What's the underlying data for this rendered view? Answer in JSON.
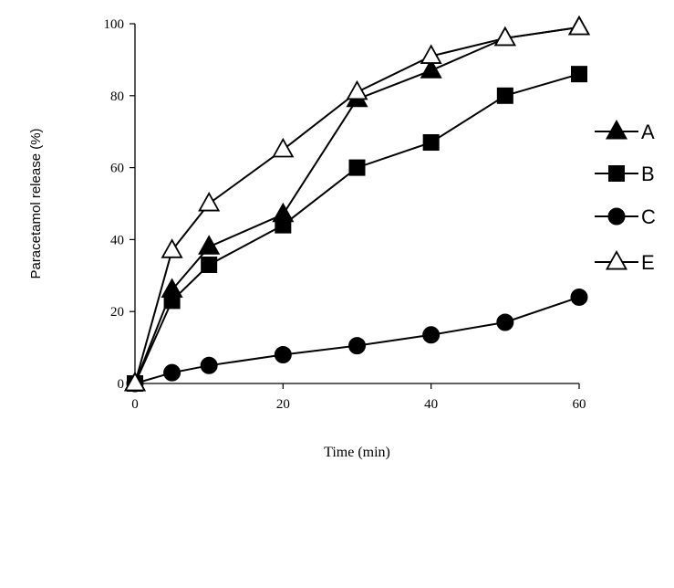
{
  "chart_data": {
    "type": "line",
    "title": "",
    "xlabel": "Time (min)",
    "ylabel": "Paracetamol release (%)",
    "xlim": [
      0,
      60
    ],
    "ylim": [
      0,
      100
    ],
    "x_ticks": [
      0,
      20,
      40,
      60
    ],
    "y_ticks": [
      0,
      20,
      40,
      60,
      80,
      100
    ],
    "grid": false,
    "legend_position": "right",
    "series": [
      {
        "name": "A",
        "marker": "filled-triangle",
        "x": [
          0,
          5,
          10,
          20,
          30,
          40,
          50,
          60
        ],
        "y": [
          0,
          26,
          38,
          47,
          79,
          87,
          96,
          99
        ]
      },
      {
        "name": "B",
        "marker": "filled-square",
        "x": [
          0,
          5,
          10,
          20,
          30,
          40,
          50,
          60
        ],
        "y": [
          0,
          23,
          33,
          44,
          60,
          67,
          80,
          86
        ]
      },
      {
        "name": "C",
        "marker": "filled-circle",
        "x": [
          0,
          5,
          10,
          20,
          30,
          40,
          50,
          60
        ],
        "y": [
          0,
          3,
          5,
          8,
          10.5,
          13.5,
          17,
          24
        ]
      },
      {
        "name": "E",
        "marker": "open-triangle",
        "x": [
          0,
          5,
          10,
          20,
          30,
          40,
          50,
          60
        ],
        "y": [
          0,
          37,
          50,
          65,
          81,
          91,
          96,
          99
        ]
      }
    ]
  }
}
